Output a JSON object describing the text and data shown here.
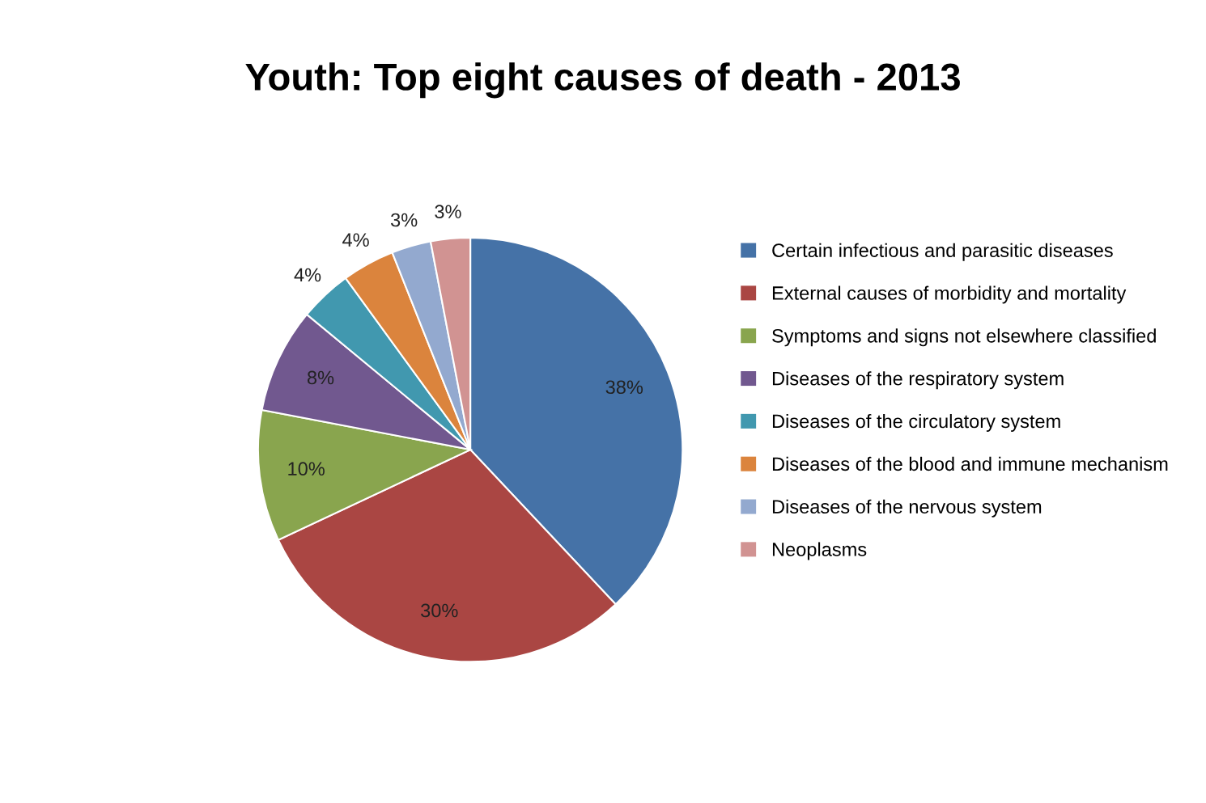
{
  "chart_data": {
    "type": "pie",
    "title": "Youth: Top eight causes of death - 2013",
    "categories": [
      "Certain infectious and parasitic diseases",
      "External causes of morbidity and mortality",
      "Symptoms and signs not elsewhere classified",
      "Diseases of the respiratory system",
      "Diseases of the circulatory system",
      "Diseases of the blood and immune mechanism",
      "Diseases of the nervous system",
      "Neoplasms"
    ],
    "values": [
      38,
      30,
      10,
      8,
      4,
      4,
      3,
      3
    ],
    "value_labels": [
      "38%",
      "30%",
      "10%",
      "8%",
      "4%",
      "4%",
      "3%",
      "3%"
    ],
    "colors": [
      "#4572a7",
      "#aa4643",
      "#89a54e",
      "#71588f",
      "#4198af",
      "#db843d",
      "#93a9cf",
      "#d19392"
    ],
    "legend": "right"
  }
}
